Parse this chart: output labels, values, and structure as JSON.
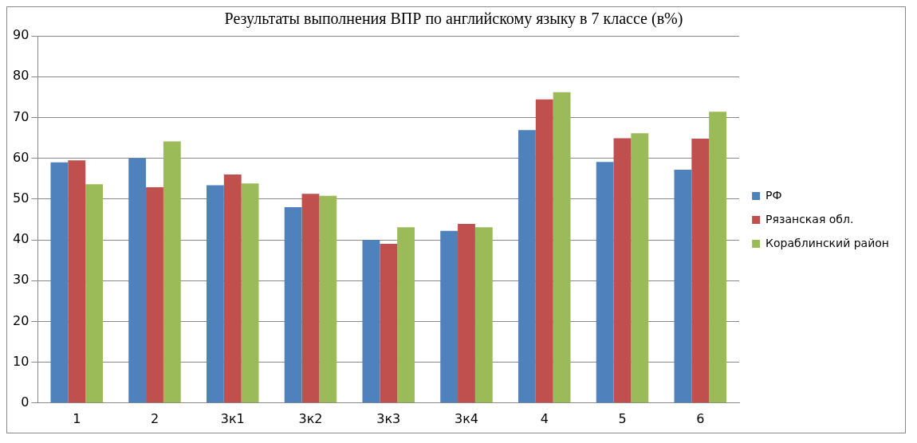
{
  "chart_data": {
    "type": "bar",
    "title": "Результаты выполнения ВПР по английскому языку в 7 классе (в%)",
    "categories": [
      "1",
      "2",
      "3к1",
      "3к2",
      "3к3",
      "3к4",
      "4",
      "5",
      "6"
    ],
    "series": [
      {
        "name": "РФ",
        "color": "#4f81bd",
        "values": [
          59.0,
          60.0,
          53.4,
          48.0,
          40.0,
          42.2,
          66.9,
          59.1,
          57.2
        ]
      },
      {
        "name": "Рязанская обл.",
        "color": "#c0504d",
        "values": [
          59.5,
          52.9,
          56.0,
          51.3,
          39.0,
          43.9,
          74.4,
          64.9,
          64.8
        ]
      },
      {
        "name": "Кораблинский район",
        "color": "#9bbb59",
        "values": [
          53.6,
          64.1,
          53.8,
          50.8,
          43.1,
          43.1,
          76.2,
          66.1,
          71.4
        ]
      }
    ],
    "ylim": [
      0,
      90
    ],
    "yticks": [
      0,
      10,
      20,
      30,
      40,
      50,
      60,
      70,
      80,
      90
    ],
    "grid": "y",
    "legend": "right"
  }
}
